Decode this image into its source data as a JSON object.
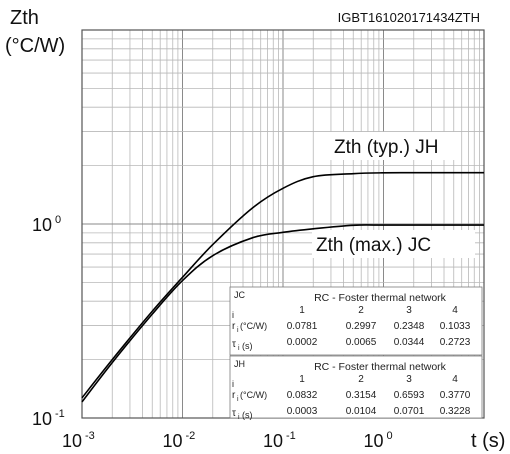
{
  "chart_data": {
    "type": "line",
    "code": "IGBT161020171434ZTH",
    "ylabel_line1": "Zth",
    "ylabel_line2": "(°C/W)",
    "xlabel": "t (s)",
    "x_scale": "log",
    "y_scale": "log",
    "xlim": [
      0.001,
      10
    ],
    "ylim": [
      0.1,
      10
    ],
    "grid": true,
    "x_ticks": [
      {
        "value": 0.001,
        "base": "10",
        "exp": "-3"
      },
      {
        "value": 0.01,
        "base": "10",
        "exp": "-2"
      },
      {
        "value": 0.1,
        "base": "10",
        "exp": "-1"
      },
      {
        "value": 1,
        "base": "10",
        "exp": "0"
      }
    ],
    "y_ticks": [
      {
        "value": 0.1,
        "base": "10",
        "exp": "-1"
      },
      {
        "value": 1,
        "base": "10",
        "exp": "0"
      }
    ],
    "series": [
      {
        "name": "Zth (typ.) JH",
        "color": "#000000",
        "points": [
          [
            0.001,
            0.127
          ],
          [
            0.002,
            0.2
          ],
          [
            0.005,
            0.355
          ],
          [
            0.01,
            0.531
          ],
          [
            0.02,
            0.783
          ],
          [
            0.05,
            1.213
          ],
          [
            0.1,
            1.528
          ],
          [
            0.2,
            1.754
          ],
          [
            0.5,
            1.818
          ],
          [
            1,
            1.836
          ],
          [
            2,
            1.838
          ],
          [
            5,
            1.838
          ],
          [
            10,
            1.838
          ]
        ]
      },
      {
        "name": "Zth (max.) JC",
        "color": "#000000",
        "points": [
          [
            0.001,
            0.121
          ],
          [
            0.002,
            0.193
          ],
          [
            0.005,
            0.343
          ],
          [
            0.01,
            0.511
          ],
          [
            0.02,
            0.687
          ],
          [
            0.05,
            0.85
          ],
          [
            0.1,
            0.906
          ],
          [
            0.2,
            0.945
          ],
          [
            0.5,
            0.985
          ],
          [
            1,
            0.987
          ],
          [
            2,
            0.988
          ],
          [
            5,
            0.988
          ],
          [
            10,
            0.988
          ]
        ]
      }
    ],
    "tables": [
      {
        "tag": "JC",
        "title": "RC - Foster thermal network",
        "i_label": "i",
        "r_label": "r",
        "r_sub": "i",
        "r_unit": " (°C/W)",
        "tau_label": "τ",
        "tau_sub": "i",
        "tau_unit": "(s)",
        "cols": [
          "1",
          "2",
          "3",
          "4"
        ],
        "r": [
          "0.0781",
          "0.2997",
          "0.2348",
          "0.1033"
        ],
        "tau": [
          "0.0002",
          "0.0065",
          "0.0344",
          "0.2723"
        ]
      },
      {
        "tag": "JH",
        "title": "RC - Foster thermal network",
        "i_label": "i",
        "r_label": "r",
        "r_sub": "i",
        "r_unit": " (°C/W)",
        "tau_label": "τ",
        "tau_sub": "i",
        "tau_unit": "(s)",
        "cols": [
          "1",
          "2",
          "3",
          "4"
        ],
        "r": [
          "0.0832",
          "0.3154",
          "0.6593",
          "0.3770"
        ],
        "tau": [
          "0.0003",
          "0.0104",
          "0.0701",
          "0.3228"
        ]
      }
    ]
  }
}
